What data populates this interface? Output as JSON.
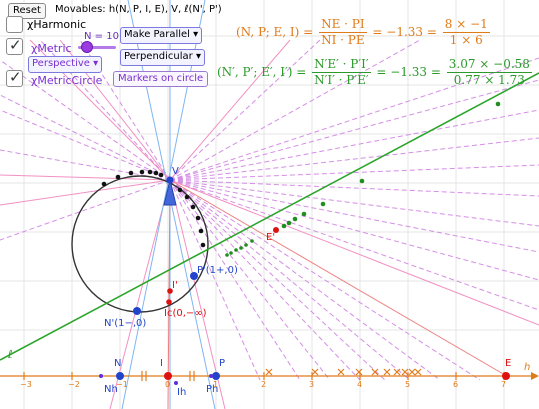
{
  "controls": {
    "reset_label": "Reset",
    "movables_text": "Movables: h(N, P, I, E), V, ℓ(N', P')",
    "harmonic_label": "χHarmonic",
    "metric_label": "χMetric",
    "slider_label": "N = 10",
    "slider_value": 10,
    "perspective_select": "Perspective",
    "metric_circle_label": "χMetricCircle",
    "make_parallel_select": "Make Parallel",
    "perpendicular_select": "Perpendicular",
    "markers_button": "Markers on circle",
    "harmonic_checked": false,
    "metric_checked": true,
    "metric_circle_checked": true
  },
  "formulas": {
    "top_lhs": "(N, P; E, I) =",
    "top_frac1_num": "NE · PI",
    "top_frac1_den": "NI · PE",
    "top_eq": "= −1.33 =",
    "top_frac2_num": "8 × −1",
    "top_frac2_den": "1 × 6",
    "bot_lhs": "(N′, P′; E′, I′) =",
    "bot_frac1_num": "N′E′ · P′I′",
    "bot_frac1_den": "N′I′ · P′E′",
    "bot_eq": "= −1.33 =",
    "bot_frac2_num": "3.07 × −0.58",
    "bot_frac2_den": "0.77 × 1.73"
  },
  "points": {
    "V": "V",
    "E_prime": "E'",
    "P_prime": "P'(1+,0)",
    "I_prime": "I'",
    "Ic": "Ic(0,−∞)",
    "N_prime": "N'(1−,0)",
    "N": "N",
    "I": "I",
    "P": "P",
    "E": "E",
    "Nh": "Nh",
    "Ih": "Ih",
    "Ph": "Ph",
    "ell": "ℓ",
    "h": "h"
  },
  "axis": {
    "ticks": [
      "−3",
      "−2",
      "−1",
      "0",
      "1",
      "2",
      "3",
      "4",
      "5",
      "6",
      "7"
    ]
  },
  "colors": {
    "orange": "#e07b1a",
    "green": "#2a9a2a",
    "purple": "#9b3be0",
    "pink": "#f06eb4",
    "blue": "#2244cc",
    "red": "#dd1111"
  }
}
